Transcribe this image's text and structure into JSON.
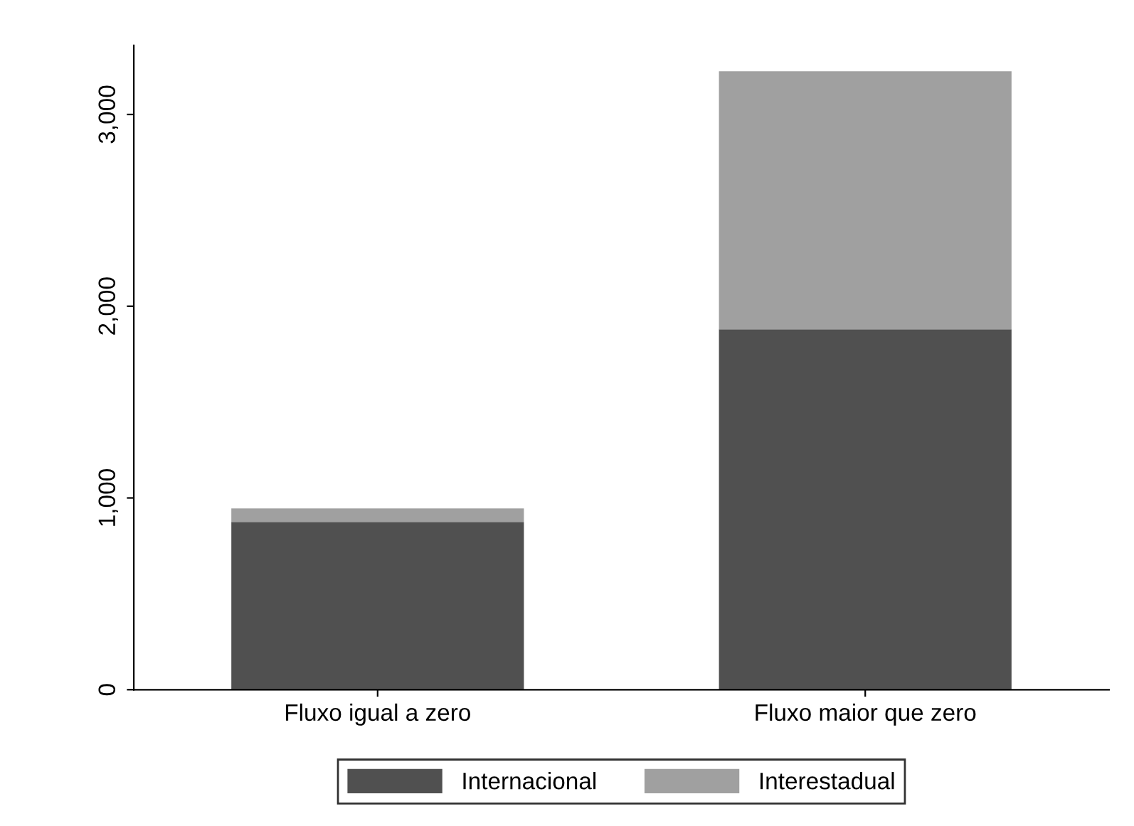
{
  "chart_data": {
    "type": "bar",
    "stacked": true,
    "categories": [
      "Fluxo igual a zero",
      "Fluxo maior que zero"
    ],
    "series": [
      {
        "name": "Internacional",
        "color": "#505050",
        "values": [
          875,
          1880
        ]
      },
      {
        "name": "Interestadual",
        "color": "#a0a0a0",
        "values": [
          70,
          1345
        ]
      }
    ],
    "ylim": [
      0,
      3360
    ],
    "yticks": [
      0,
      {
        "value": 1000,
        "label": "1,000"
      },
      {
        "value": 2000,
        "label": "2,000"
      },
      {
        "value": 3000,
        "label": "3,000"
      }
    ],
    "grid": false,
    "legend": "bottom"
  }
}
